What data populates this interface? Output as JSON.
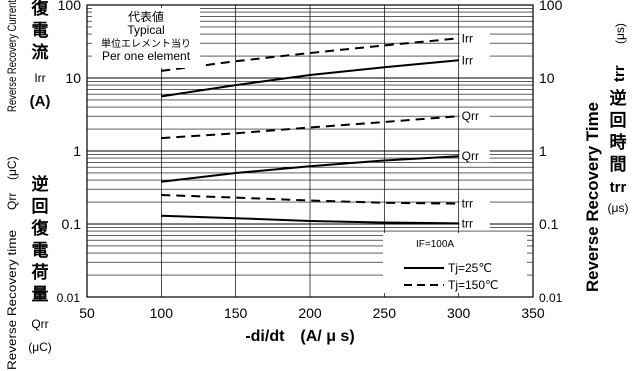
{
  "chart_data": {
    "type": "line",
    "xlabel": "-di/dt　(A/ μ s)",
    "x_ticks": [
      50,
      100,
      150,
      200,
      250,
      300,
      350
    ],
    "xlim": [
      50,
      350
    ],
    "ylim": [
      0.01,
      100
    ],
    "y_scale": "log",
    "grid": true,
    "left_ticks": [
      "100",
      "10",
      "1",
      "0.1",
      "0.01"
    ],
    "right_ticks": [
      "100",
      "10",
      "1",
      "0.1",
      "0.01"
    ],
    "left_label_top": {
      "en": "Reverse Recovery Current",
      "jp": [
        "復",
        "電",
        "流"
      ],
      "sym": "Irr",
      "unit": "(A)"
    },
    "left_label_bottom": {
      "en": "Reverse Recovery time",
      "sym": "Qrr",
      "unit_v": "(μC)",
      "jp": [
        "逆",
        "回",
        "復",
        "電",
        "荷",
        "量"
      ],
      "sym2": "Qrr",
      "unit": "(μC)"
    },
    "right_label": {
      "en": "Reverse Recovery Time",
      "top_sym": "trr",
      "top_unit": "(μs)",
      "jp": [
        "逆",
        "回",
        "時",
        "間"
      ],
      "sym": "trr",
      "unit": "(μs)"
    },
    "info_box": [
      "代表値",
      "Typical",
      "単位エレメント当り",
      "Per one element"
    ],
    "legend": {
      "condition": "IF=100A",
      "solid": "Tj=25℃",
      "dashed": "Tj=150℃"
    },
    "series": [
      {
        "name": "Irr",
        "style": "dashed",
        "x": [
          100,
          150,
          200,
          250,
          300
        ],
        "y": [
          12.5,
          17,
          22,
          28,
          35
        ]
      },
      {
        "name": "Irr",
        "style": "solid",
        "x": [
          100,
          150,
          200,
          250,
          300
        ],
        "y": [
          5.6,
          8,
          11,
          14,
          17.5
        ]
      },
      {
        "name": "Qrr",
        "style": "dashed",
        "x": [
          100,
          150,
          200,
          250,
          300
        ],
        "y": [
          1.5,
          1.75,
          2.1,
          2.5,
          3.0
        ]
      },
      {
        "name": "Qrr",
        "style": "solid",
        "x": [
          100,
          150,
          200,
          250,
          300
        ],
        "y": [
          0.38,
          0.5,
          0.62,
          0.74,
          0.85
        ]
      },
      {
        "name": "trr",
        "style": "dashed",
        "x": [
          100,
          150,
          200,
          250,
          300
        ],
        "y": [
          0.25,
          0.23,
          0.21,
          0.195,
          0.19
        ]
      },
      {
        "name": "trr",
        "style": "solid",
        "x": [
          100,
          150,
          200,
          250,
          300
        ],
        "y": [
          0.13,
          0.12,
          0.11,
          0.105,
          0.102
        ]
      }
    ]
  }
}
